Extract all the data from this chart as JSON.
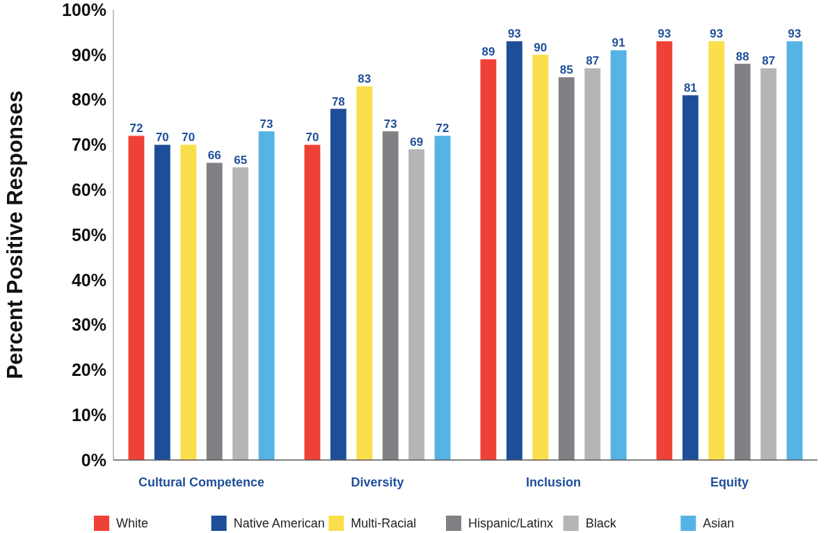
{
  "chart_data": {
    "type": "bar",
    "ylabel": "Percent Positive Responses",
    "categories": [
      "Cultural Competence",
      "Diversity",
      "Inclusion",
      "Equity"
    ],
    "series": [
      {
        "name": "White",
        "color": "#ef4136",
        "values": [
          72,
          70,
          89,
          93
        ]
      },
      {
        "name": "Native American",
        "color": "#1f4e99",
        "values": [
          70,
          78,
          93,
          81
        ]
      },
      {
        "name": "Multi-Racial",
        "color": "#f9e04b",
        "values": [
          70,
          83,
          90,
          93
        ]
      },
      {
        "name": "Hispanic/Latinx",
        "color": "#808184",
        "values": [
          66,
          73,
          85,
          88
        ]
      },
      {
        "name": "Black",
        "color": "#b5b5b5",
        "values": [
          65,
          69,
          87,
          87
        ]
      },
      {
        "name": "Asian",
        "color": "#55b3e6",
        "values": [
          73,
          72,
          91,
          93
        ]
      }
    ],
    "ylim": [
      0,
      100
    ],
    "yticks": [
      {
        "value": 0,
        "label": "0%"
      },
      {
        "value": 10,
        "label": "10%"
      },
      {
        "value": 20,
        "label": "20%"
      },
      {
        "value": 30,
        "label": "30%"
      },
      {
        "value": 40,
        "label": "40%"
      },
      {
        "value": 50,
        "label": "50%"
      },
      {
        "value": 60,
        "label": "60%"
      },
      {
        "value": 70,
        "label": "70%"
      },
      {
        "value": 80,
        "label": "80%"
      },
      {
        "value": 90,
        "label": "90%"
      },
      {
        "value": 100,
        "label": "100%"
      }
    ],
    "data_labels": true,
    "grid": false,
    "legend": "bottom"
  }
}
